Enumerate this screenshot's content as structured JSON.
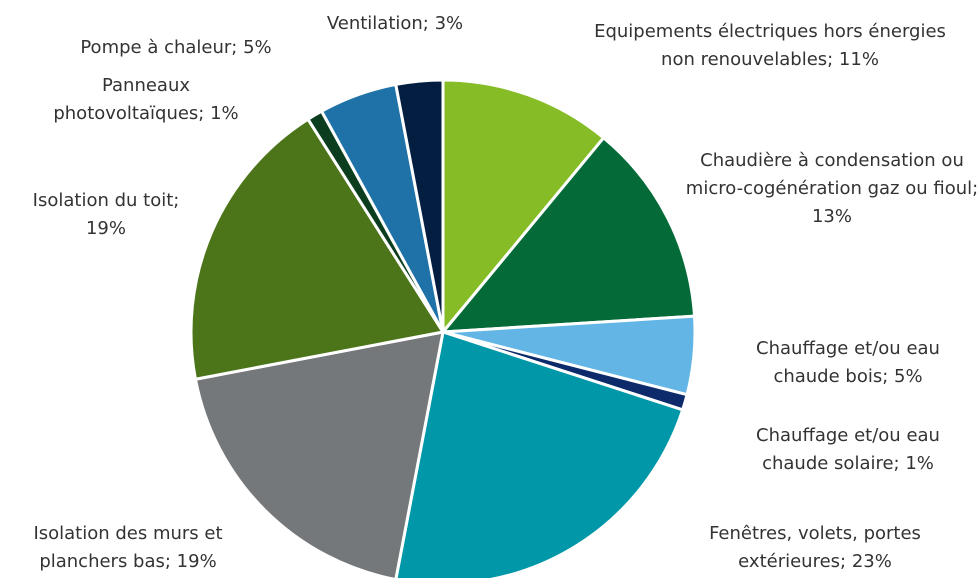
{
  "chart_data": {
    "type": "pie",
    "labels": [
      "Equipements électriques hors énergies non renouvelables; 11%",
      "Chaudière à condensation ou micro-cogénération gaz ou fioul; 13%",
      "Chauffage et/ou eau chaude bois; 5%",
      "Chauffage et/ou eau chaude solaire; 1%",
      "Fenêtres, volets, portes extérieures; 23%",
      "Isolation des murs et planchers bas; 19%",
      "Isolation du toit; 19%",
      "Panneaux photovoltaïques; 1%",
      "Pompe à chaleur; 5%",
      "Ventilation; 3%"
    ],
    "values": [
      11,
      13,
      5,
      1,
      23,
      19,
      19,
      1,
      5,
      3
    ],
    "colors": [
      "#86bc25",
      "#046a38",
      "#62b5e5",
      "#0d2a6b",
      "#0097a9",
      "#75787b",
      "#4c7418",
      "#0b3d1e",
      "#1f72a8",
      "#041e42"
    ]
  }
}
